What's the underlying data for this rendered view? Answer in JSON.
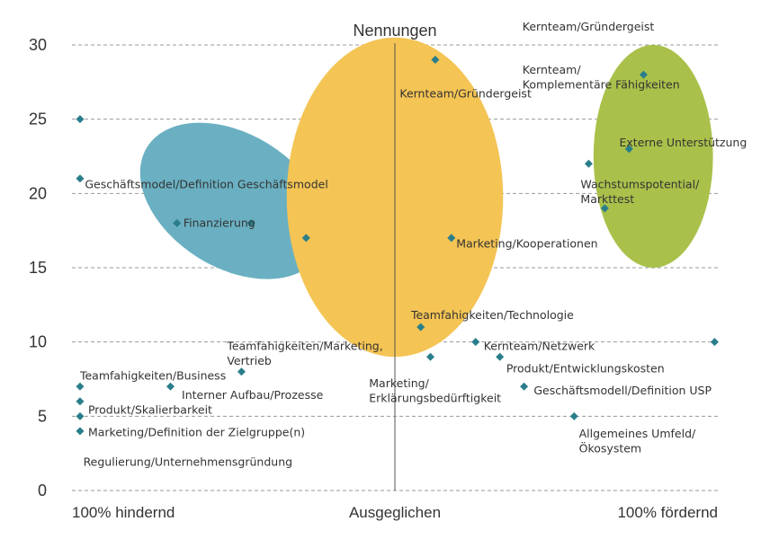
{
  "chart_data": {
    "type": "scatter",
    "title": "Nennungen",
    "ylim": [
      0,
      30
    ],
    "xlim": [
      -1,
      1
    ],
    "y_ticks": [
      "0",
      "5",
      "10",
      "15",
      "20",
      "25",
      "30"
    ],
    "x_labels": [
      "100% hindernd",
      "Ausgeglichen",
      "100% fördernd"
    ],
    "grid": true,
    "clusters": [
      {
        "color": "#6ab0c2",
        "x": [
          -0.815,
          -0.185
        ],
        "y": [
          15,
          24
        ]
      },
      {
        "color": "#f4c454",
        "x": [
          -0.335,
          0.335
        ],
        "y": [
          9,
          30.5
        ]
      },
      {
        "color": "#a9c14a",
        "x": [
          0.615,
          0.985
        ],
        "y": [
          15,
          30
        ]
      }
    ],
    "points": [
      {
        "x": -0.975,
        "y": 25,
        "color": "#2a7e8b"
      },
      {
        "x": -0.975,
        "y": 21,
        "color": "#2a7e8b"
      },
      {
        "x": -0.675,
        "y": 18,
        "color": "#2a7e8b"
      },
      {
        "x": -0.445,
        "y": 18,
        "color": "#2a7e8b"
      },
      {
        "x": -0.275,
        "y": 17,
        "color": "#2a7e8b"
      },
      {
        "x": 0.125,
        "y": 29,
        "color": "#2a7e8b"
      },
      {
        "x": 0.175,
        "y": 17,
        "color": "#2a7e8b"
      },
      {
        "x": 0.08,
        "y": 11,
        "color": "#2a7e8b"
      },
      {
        "x": 0.11,
        "y": 9,
        "color": "#2a7e8b"
      },
      {
        "x": 0.25,
        "y": 10,
        "color": "#2a7e8b"
      },
      {
        "x": 0.325,
        "y": 9,
        "color": "#2a7e8b"
      },
      {
        "x": 0.4,
        "y": 7,
        "color": "#2a7e8b"
      },
      {
        "x": 0.555,
        "y": 5,
        "color": "#2a7e8b"
      },
      {
        "x": 0.99,
        "y": 10,
        "color": "#2a7e8b"
      },
      {
        "x": 0.77,
        "y": 28,
        "color": "#2a7e8b"
      },
      {
        "x": 0.725,
        "y": 23,
        "color": "#2a7e8b"
      },
      {
        "x": 0.6,
        "y": 22,
        "color": "#2a7e8b"
      },
      {
        "x": 0.65,
        "y": 19,
        "color": "#2a7e8b"
      },
      {
        "x": -0.475,
        "y": 8,
        "color": "#2a7e8b"
      },
      {
        "x": -0.695,
        "y": 7,
        "color": "#2a7e8b"
      },
      {
        "x": -0.975,
        "y": 7,
        "color": "#2a7e8b"
      },
      {
        "x": -0.975,
        "y": 6,
        "color": "#2a7e8b"
      },
      {
        "x": -0.975,
        "y": 5,
        "color": "#2a7e8b"
      },
      {
        "x": -0.975,
        "y": 4,
        "color": "#2a7e8b"
      }
    ],
    "annotations": [
      {
        "text": "Kernteam/Gründergeist",
        "x": 0.395,
        "y": 31.2
      },
      {
        "text": "Kernteam/",
        "x": 0.395,
        "y": 28.3
      },
      {
        "text": "Komplementäre Fähigkeiten",
        "x": 0.395,
        "y": 27.3
      },
      {
        "text": "Kernteam/Gründergeist",
        "x": 0.015,
        "y": 26.7
      },
      {
        "text": "Externe Unterstützung",
        "x": 0.695,
        "y": 23.4
      },
      {
        "text": "Wachstumspotential/",
        "x": 0.575,
        "y": 20.6
      },
      {
        "text": "Markttest",
        "x": 0.575,
        "y": 19.6
      },
      {
        "text": "Geschäftsmodel/Definition Geschäftsmodel",
        "x": -0.96,
        "y": 20.6
      },
      {
        "text": "Finanzierung",
        "x": -0.655,
        "y": 18.0
      },
      {
        "text": "Marketing/Kooperationen",
        "x": 0.19,
        "y": 16.6
      },
      {
        "text": "Teamfahigkeiten/Technologie",
        "x": 0.05,
        "y": 11.8
      },
      {
        "text": "Teamfahigkeiten/Marketing,",
        "x": -0.52,
        "y": 9.7
      },
      {
        "text": "Vertrieb",
        "x": -0.52,
        "y": 8.7
      },
      {
        "text": "Kernteam/Netzwerk",
        "x": 0.275,
        "y": 9.7
      },
      {
        "text": "Produkt/Entwicklungskosten",
        "x": 0.345,
        "y": 8.2
      },
      {
        "text": "Marketing/",
        "x": -0.08,
        "y": 7.2
      },
      {
        "text": "Erklärungsbedürftigkeit",
        "x": -0.08,
        "y": 6.2
      },
      {
        "text": "Geschäftsmodell/Definition USP",
        "x": 0.43,
        "y": 6.7
      },
      {
        "text": "Teamfahigkeiten/Business",
        "x": -0.975,
        "y": 7.7
      },
      {
        "text": "Interner Aufbau/Prozesse",
        "x": -0.66,
        "y": 6.4
      },
      {
        "text": "Produkt/Skalierbarkeit",
        "x": -0.95,
        "y": 5.4
      },
      {
        "text": "Marketing/Definition der Zielgruppe(n)",
        "x": -0.95,
        "y": 3.9
      },
      {
        "text": "Allgemeines Umfeld/",
        "x": 0.57,
        "y": 3.8
      },
      {
        "text": "Ökosystem",
        "x": 0.57,
        "y": 2.8
      },
      {
        "text": "Regulierung/Unternehmensgründung",
        "x": -0.965,
        "y": 1.9
      }
    ]
  }
}
